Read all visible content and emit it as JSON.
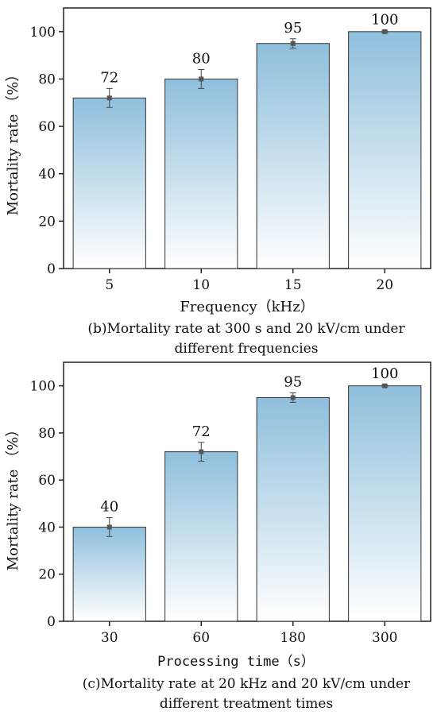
{
  "chart_data": [
    {
      "type": "bar",
      "categories": [
        "5",
        "10",
        "15",
        "20"
      ],
      "values": [
        72,
        80,
        95,
        100
      ],
      "errors": [
        4,
        4,
        2,
        0.5
      ],
      "data_labels": [
        "72",
        "80",
        "95",
        "100"
      ],
      "xlabel": "Frequency（kHz）",
      "ylabel": "Mortality rate （%）",
      "ylim": [
        0,
        110
      ],
      "yticks": [
        "0",
        "20",
        "40",
        "60",
        "80",
        "100"
      ],
      "caption_line1": "(b)Mortality rate at 300 s and 20 kV/cm under",
      "caption_line2": "different frequencies",
      "bar_color_top": "#8fbfdc",
      "bar_color_bottom": "#ffffff"
    },
    {
      "type": "bar",
      "categories": [
        "30",
        "60",
        "180",
        "300"
      ],
      "values": [
        40,
        72,
        95,
        100
      ],
      "errors": [
        4,
        4,
        2,
        0.5
      ],
      "data_labels": [
        "40",
        "72",
        "95",
        "100"
      ],
      "xlabel": "Processing time（s）",
      "ylabel": "Mortality rate （%）",
      "ylim": [
        0,
        110
      ],
      "yticks": [
        "0",
        "20",
        "40",
        "60",
        "80",
        "100"
      ],
      "caption_line1": "(c)Mortality rate at 20 kHz and 20 kV/cm under",
      "caption_line2": "different treatment times",
      "bar_color_top": "#8fbfdc",
      "bar_color_bottom": "#ffffff"
    }
  ]
}
